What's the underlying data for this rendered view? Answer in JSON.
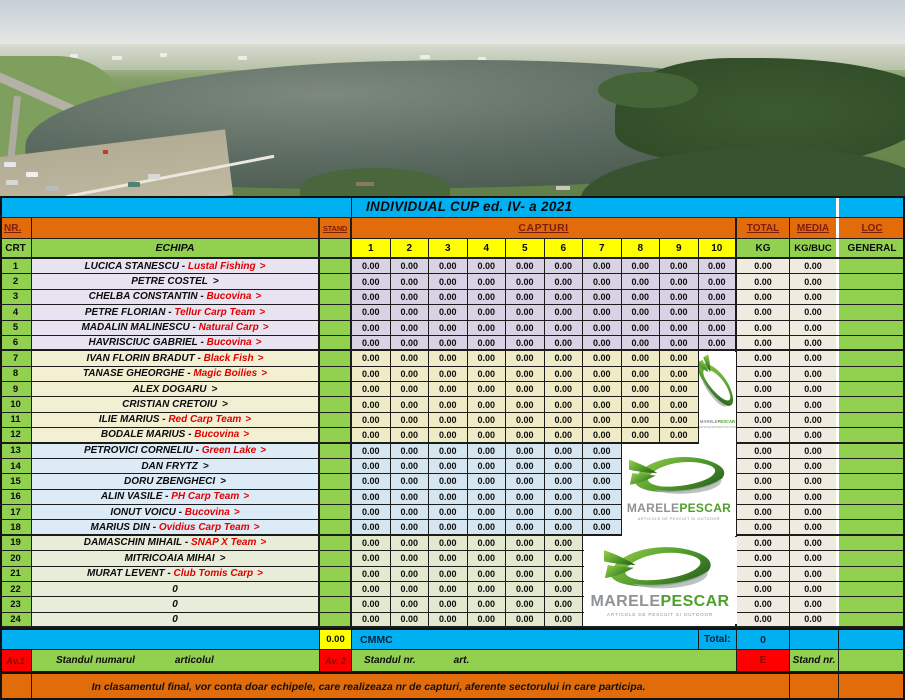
{
  "title": "INDIVIDUAL  CUP ed. IV- a  2021",
  "header": {
    "nr": "NR.",
    "crt": "CRT",
    "echipa": "ECHIPA",
    "stand": "STAND",
    "capturi": "CAPTURI",
    "cols": [
      "1",
      "2",
      "3",
      "4",
      "5",
      "6",
      "7",
      "8",
      "9",
      "10"
    ],
    "total": "TOTAL",
    "kg": "KG",
    "media": "MEDIA",
    "kgbuc": "KG/BUC",
    "loc": "LOC",
    "general": "GENERAL"
  },
  "table": {
    "rows": [
      {
        "nr": "1",
        "name": "LUCICA STANESCU",
        "team": "Lustal Fishing",
        "group": 1,
        "captures": [
          "0.00",
          "0.00",
          "0.00",
          "0.00",
          "0.00",
          "0.00",
          "0.00",
          "0.00",
          "0.00",
          "0.00"
        ],
        "total_kg": "0.00",
        "media_kgbuc": "0.00"
      },
      {
        "nr": "2",
        "name": "PETRE  COSTEL",
        "team": null,
        "group": 1,
        "captures": [
          "0.00",
          "0.00",
          "0.00",
          "0.00",
          "0.00",
          "0.00",
          "0.00",
          "0.00",
          "0.00",
          "0.00"
        ],
        "total_kg": "0.00",
        "media_kgbuc": "0.00"
      },
      {
        "nr": "3",
        "name": "CHELBA  CONSTANTIN",
        "team": "Bucovina",
        "group": 1,
        "captures": [
          "0.00",
          "0.00",
          "0.00",
          "0.00",
          "0.00",
          "0.00",
          "0.00",
          "0.00",
          "0.00",
          "0.00"
        ],
        "total_kg": "0.00",
        "media_kgbuc": "0.00"
      },
      {
        "nr": "4",
        "name": "PETRE  FLORIAN",
        "team": "Tellur Carp Team",
        "group": 1,
        "captures": [
          "0.00",
          "0.00",
          "0.00",
          "0.00",
          "0.00",
          "0.00",
          "0.00",
          "0.00",
          "0.00",
          "0.00"
        ],
        "total_kg": "0.00",
        "media_kgbuc": "0.00"
      },
      {
        "nr": "5",
        "name": "MADALIN  MALINESCU",
        "team": "Natural Carp",
        "group": 1,
        "captures": [
          "0.00",
          "0.00",
          "0.00",
          "0.00",
          "0.00",
          "0.00",
          "0.00",
          "0.00",
          "0.00",
          "0.00"
        ],
        "total_kg": "0.00",
        "media_kgbuc": "0.00"
      },
      {
        "nr": "6",
        "name": "HAVRISCIUC  GABRIEL",
        "team": "Bucovina",
        "group": 1,
        "captures": [
          "0.00",
          "0.00",
          "0.00",
          "0.00",
          "0.00",
          "0.00",
          "0.00",
          "0.00",
          "0.00",
          "0.00"
        ],
        "total_kg": "0.00",
        "media_kgbuc": "0.00"
      },
      {
        "nr": "7",
        "name": "IVAN FLORIN BRADUT",
        "team": "Black Fish",
        "group": 2,
        "captures": [
          "0.00",
          "0.00",
          "0.00",
          "0.00",
          "0.00",
          "0.00",
          "0.00",
          "0.00",
          "0.00"
        ],
        "total_kg": "0.00",
        "media_kgbuc": "0.00"
      },
      {
        "nr": "8",
        "name": "TANASE GHEORGHE",
        "team": "Magic Boilies",
        "group": 2,
        "captures": [
          "0.00",
          "0.00",
          "0.00",
          "0.00",
          "0.00",
          "0.00",
          "0.00",
          "0.00",
          "0.00"
        ],
        "total_kg": "0.00",
        "media_kgbuc": "0.00"
      },
      {
        "nr": "9",
        "name": "ALEX  DOGARU",
        "team": null,
        "group": 2,
        "captures": [
          "0.00",
          "0.00",
          "0.00",
          "0.00",
          "0.00",
          "0.00",
          "0.00",
          "0.00",
          "0.00"
        ],
        "total_kg": "0.00",
        "media_kgbuc": "0.00"
      },
      {
        "nr": "10",
        "name": "CRISTIAN  CRETOIU",
        "team": null,
        "group": 2,
        "captures": [
          "0.00",
          "0.00",
          "0.00",
          "0.00",
          "0.00",
          "0.00",
          "0.00",
          "0.00",
          "0.00"
        ],
        "total_kg": "0.00",
        "media_kgbuc": "0.00"
      },
      {
        "nr": "11",
        "name": "ILIE  MARIUS",
        "team": "Red Carp Team",
        "group": 2,
        "captures": [
          "0.00",
          "0.00",
          "0.00",
          "0.00",
          "0.00",
          "0.00",
          "0.00",
          "0.00",
          "0.00"
        ],
        "total_kg": "0.00",
        "media_kgbuc": "0.00"
      },
      {
        "nr": "12",
        "name": "BODALE MARIUS",
        "team": "Bucovina",
        "group": 2,
        "captures": [
          "0.00",
          "0.00",
          "0.00",
          "0.00",
          "0.00",
          "0.00",
          "0.00",
          "0.00",
          "0.00"
        ],
        "total_kg": "0.00",
        "media_kgbuc": "0.00"
      },
      {
        "nr": "13",
        "name": "PETROVICI CORNELIU",
        "team": "Green Lake",
        "group": 3,
        "captures": [
          "0.00",
          "0.00",
          "0.00",
          "0.00",
          "0.00",
          "0.00",
          "0.00"
        ],
        "total_kg": "0.00",
        "media_kgbuc": "0.00"
      },
      {
        "nr": "14",
        "name": "DAN  FRYTZ",
        "team": null,
        "group": 3,
        "captures": [
          "0.00",
          "0.00",
          "0.00",
          "0.00",
          "0.00",
          "0.00",
          "0.00"
        ],
        "total_kg": "0.00",
        "media_kgbuc": "0.00"
      },
      {
        "nr": "15",
        "name": "DORU  ZBENGHECI",
        "team": null,
        "group": 3,
        "captures": [
          "0.00",
          "0.00",
          "0.00",
          "0.00",
          "0.00",
          "0.00",
          "0.00"
        ],
        "total_kg": "0.00",
        "media_kgbuc": "0.00"
      },
      {
        "nr": "16",
        "name": "ALIN  VASILE",
        "team": "PH Carp Team",
        "group": 3,
        "captures": [
          "0.00",
          "0.00",
          "0.00",
          "0.00",
          "0.00",
          "0.00",
          "0.00"
        ],
        "total_kg": "0.00",
        "media_kgbuc": "0.00"
      },
      {
        "nr": "17",
        "name": "IONUT  VOICU",
        "team": "Bucovina",
        "group": 3,
        "captures": [
          "0.00",
          "0.00",
          "0.00",
          "0.00",
          "0.00",
          "0.00",
          "0.00"
        ],
        "total_kg": "0.00",
        "media_kgbuc": "0.00"
      },
      {
        "nr": "18",
        "name": "MARIUS  DIN",
        "team": "Ovidius Carp Team",
        "group": 3,
        "captures": [
          "0.00",
          "0.00",
          "0.00",
          "0.00",
          "0.00",
          "0.00",
          "0.00"
        ],
        "total_kg": "0.00",
        "media_kgbuc": "0.00"
      },
      {
        "nr": "19",
        "name": "DAMASCHIN  MIHAIL",
        "team": "SNAP X Team",
        "group": 4,
        "captures": [
          "0.00",
          "0.00",
          "0.00",
          "0.00",
          "0.00",
          "0.00"
        ],
        "total_kg": "0.00",
        "media_kgbuc": "0.00"
      },
      {
        "nr": "20",
        "name": "MITRICOAIA  MIHAI",
        "team": null,
        "group": 4,
        "captures": [
          "0.00",
          "0.00",
          "0.00",
          "0.00",
          "0.00",
          "0.00"
        ],
        "total_kg": "0.00",
        "media_kgbuc": "0.00"
      },
      {
        "nr": "21",
        "name": "MURAT  LEVENT",
        "team": "Club Tomis Carp",
        "group": 4,
        "captures": [
          "0.00",
          "0.00",
          "0.00",
          "0.00",
          "0.00",
          "0.00"
        ],
        "total_kg": "0.00",
        "media_kgbuc": "0.00"
      },
      {
        "nr": "22",
        "name": "0",
        "team": null,
        "placeholder": true,
        "group": 4,
        "captures": [
          "0.00",
          "0.00",
          "0.00",
          "0.00",
          "0.00",
          "0.00"
        ],
        "total_kg": "0.00",
        "media_kgbuc": "0.00"
      },
      {
        "nr": "23",
        "name": "0",
        "team": null,
        "placeholder": true,
        "group": 4,
        "captures": [
          "0.00",
          "0.00",
          "0.00",
          "0.00",
          "0.00",
          "0.00"
        ],
        "total_kg": "0.00",
        "media_kgbuc": "0.00"
      },
      {
        "nr": "24",
        "name": "0",
        "team": null,
        "placeholder": true,
        "group": 4,
        "captures": [
          "0.00",
          "0.00",
          "0.00",
          "0.00",
          "0.00",
          "0.00"
        ],
        "total_kg": "0.00",
        "media_kgbuc": "0.00"
      }
    ]
  },
  "bottom": {
    "stand_value": "0.00",
    "cmmc": "CMMC",
    "total_label": "Total:",
    "total_value": "0"
  },
  "av_row": {
    "av1": "Av.1",
    "text1a": "Standul numarul",
    "text1b": "articolul",
    "av2": "Av. 2",
    "text2a": "Standul  nr.",
    "text2b": "art.",
    "e": "E",
    "stand_nr": "Stand nr."
  },
  "footer": "In clasamentul final, vor conta doar echipele, care realizeaza nr de capturi, aferente sectorului in care participa.",
  "logo": {
    "brand_gray": "MARELE",
    "brand_green": "PESCAR",
    "tagline": "ARTICOLE DE PESCUIT SI OUTDOOR"
  },
  "colors": {
    "orange": "#E26B0A",
    "cyan": "#00B0F0",
    "green": "#92D050",
    "yellow": "#FFFF00",
    "red": "#FF0000",
    "maroon_text": "#7E1D0C",
    "sector1": "#D8D2E4",
    "sector2": "#EFEBC6",
    "sector3": "#D5E6F1",
    "sector4": "#E2E9CE",
    "totals_bg": "#EFEBE0"
  }
}
